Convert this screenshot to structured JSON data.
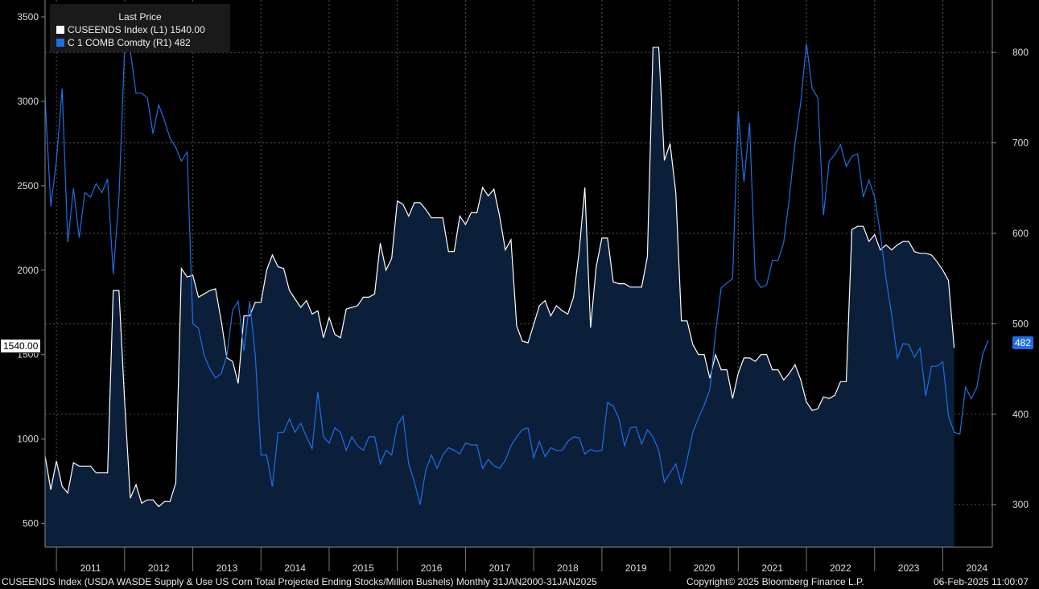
{
  "legend": {
    "title": "Last Price",
    "items": [
      {
        "label": "CUSEENDS Index  (L1)  1540.00",
        "color": "#ffffff"
      },
      {
        "label": "C 1 COMB Comdty  (R1)  482",
        "color": "#1e6fe6"
      }
    ]
  },
  "last_value_tags": {
    "left": "1540.00",
    "right": "482"
  },
  "footer": {
    "description": "CUSEENDS Index (USDA WASDE Supply & Use US Corn Total Projected Ending Stocks/Million Bushels)  Monthly 31JAN2000-31JAN2025",
    "copyright": "Copyright© 2025 Bloomberg Finance L.P.",
    "timestamp": "06-Feb-2025 11:00:07"
  },
  "colors": {
    "background": "#000000",
    "area_fill": "#0b1f3a",
    "stocks_line": "#ffffff",
    "corn_line": "#1e6fe6",
    "grid": "#555555"
  },
  "chart_data": {
    "type": "line",
    "x_ticks": [
      "2011",
      "2012",
      "2013",
      "2014",
      "2015",
      "2016",
      "2017",
      "2018",
      "2019",
      "2020",
      "2021",
      "2022",
      "2023",
      "2024"
    ],
    "left_axis": {
      "ticks": [
        500,
        1000,
        1500,
        2000,
        2500,
        3000,
        3500
      ],
      "range": [
        360,
        3600
      ]
    },
    "right_axis": {
      "ticks": [
        300,
        400,
        500,
        600,
        700,
        800
      ],
      "range": [
        253,
        858
      ]
    },
    "grid": true,
    "series": [
      {
        "name": "CUSEENDS Index",
        "axis": "left",
        "style": "area",
        "start": "2010-11",
        "values": [
          900,
          700,
          870,
          720,
          680,
          860,
          840,
          840,
          840,
          800,
          800,
          800,
          1880,
          1880,
          1230,
          650,
          730,
          620,
          640,
          640,
          600,
          630,
          630,
          740,
          2010,
          1960,
          1970,
          1840,
          1860,
          1880,
          1890,
          1700,
          1480,
          1460,
          1330,
          1730,
          1730,
          1810,
          1810,
          2000,
          2090,
          2020,
          2010,
          1880,
          1830,
          1780,
          1820,
          1740,
          1760,
          1600,
          1720,
          1620,
          1600,
          1770,
          1780,
          1790,
          1840,
          1840,
          1860,
          2160,
          2000,
          2070,
          2410,
          2390,
          2320,
          2400,
          2400,
          2360,
          2310,
          2310,
          2310,
          2110,
          2110,
          2320,
          2270,
          2340,
          2340,
          2490,
          2440,
          2480,
          2320,
          2120,
          2180,
          1670,
          1580,
          1570,
          1680,
          1790,
          1820,
          1730,
          1790,
          1760,
          1740,
          1840,
          2110,
          2490,
          1660,
          2020,
          2190,
          2190,
          1930,
          1920,
          1920,
          1900,
          1900,
          1900,
          2080,
          3320,
          3320,
          2650,
          2750,
          2460,
          1700,
          1700,
          1560,
          1500,
          1500,
          1360,
          1500,
          1410,
          1410,
          1240,
          1390,
          1480,
          1480,
          1460,
          1500,
          1500,
          1410,
          1410,
          1350,
          1390,
          1440,
          1350,
          1220,
          1170,
          1180,
          1250,
          1240,
          1260,
          1340,
          1340,
          2240,
          2260,
          2260,
          2170,
          2210,
          2120,
          2150,
          2120,
          2150,
          2170,
          2170,
          2110,
          2100,
          2100,
          2090,
          2050,
          2000,
          1940,
          1540
        ]
      },
      {
        "name": "C 1 COMB Comdty",
        "axis": "right",
        "style": "line",
        "start": "2010-11",
        "values": [
          750,
          630,
          680,
          760,
          590,
          650,
          595,
          645,
          640,
          655,
          645,
          660,
          555,
          640,
          804,
          802,
          755,
          755,
          750,
          710,
          742,
          725,
          705,
          695,
          680,
          690,
          500,
          495,
          465,
          450,
          440,
          445,
          465,
          515,
          525,
          470,
          525,
          465,
          355,
          355,
          320,
          380,
          380,
          395,
          380,
          390,
          375,
          362,
          425,
          375,
          368,
          385,
          380,
          360,
          375,
          365,
          360,
          375,
          375,
          345,
          360,
          355,
          388,
          398,
          345,
          325,
          300,
          338,
          355,
          340,
          355,
          363,
          360,
          356,
          368,
          366,
          366,
          340,
          350,
          343,
          340,
          349,
          365,
          375,
          383,
          385,
          352,
          370,
          353,
          363,
          360,
          360,
          370,
          375,
          374,
          356,
          361,
          359,
          360,
          413,
          409,
          395,
          365,
          385,
          386,
          367,
          383,
          375,
          360,
          325,
          335,
          345,
          323,
          350,
          380,
          396,
          410,
          427,
          490,
          540,
          545,
          550,
          735,
          657,
          722,
          549,
          540,
          543,
          570,
          570,
          590,
          640,
          700,
          745,
          810,
          760,
          750,
          620,
          680,
          687,
          698,
          674,
          685,
          688,
          640,
          659,
          640,
          600,
          550,
          510,
          462,
          478,
          477,
          463,
          473,
          420,
          453,
          453,
          458,
          398,
          380,
          378,
          430,
          417,
          430,
          466,
          482
        ]
      }
    ]
  }
}
